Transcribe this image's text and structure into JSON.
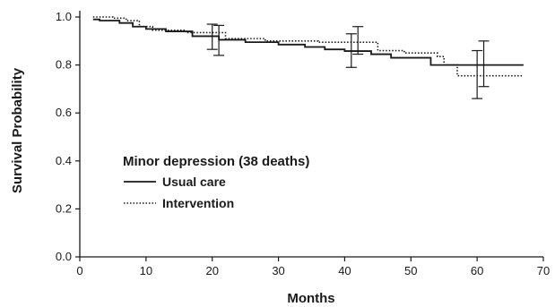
{
  "chart_data": {
    "type": "line",
    "xlabel": "Months",
    "ylabel": "Survival Probability",
    "xlim": [
      0,
      70
    ],
    "ylim": [
      0,
      1.0
    ],
    "x_ticks": [
      0,
      10,
      20,
      30,
      40,
      50,
      60,
      70
    ],
    "x_tick_labels": [
      "0",
      "10",
      "20",
      "30",
      "40",
      "50",
      "60",
      "70"
    ],
    "y_ticks": [
      0,
      0.2,
      0.4,
      0.6,
      0.8,
      1.0
    ],
    "y_tick_labels": [
      "0.0",
      "0.2",
      "0.4",
      "0.6",
      "0.8",
      "1.0"
    ],
    "grid": false,
    "legend": {
      "title": "Minor depression (38 deaths)",
      "placement": "lower-left"
    },
    "series": [
      {
        "name": "Usual care",
        "line_style": "solid",
        "color": "#1a1a1a",
        "x": [
          2,
          3,
          6,
          8,
          10,
          13,
          17,
          21,
          25,
          30,
          34,
          37,
          40,
          44,
          47,
          53,
          56,
          67
        ],
        "y": [
          0.99,
          0.985,
          0.975,
          0.96,
          0.95,
          0.94,
          0.92,
          0.905,
          0.895,
          0.885,
          0.875,
          0.865,
          0.858,
          0.845,
          0.83,
          0.8,
          0.8,
          0.8
        ],
        "error_bars": [
          {
            "x": 20,
            "low": 0.865,
            "high": 0.97
          },
          {
            "x": 41,
            "low": 0.79,
            "high": 0.93
          },
          {
            "x": 60,
            "low": 0.66,
            "high": 0.86
          }
        ]
      },
      {
        "name": "Intervention",
        "line_style": "dotted",
        "color": "#1a1a1a",
        "x": [
          2,
          5,
          7,
          9,
          11,
          16,
          22,
          28,
          36,
          45,
          49,
          54,
          55,
          57,
          67
        ],
        "y": [
          1.0,
          0.995,
          0.985,
          0.96,
          0.945,
          0.935,
          0.91,
          0.9,
          0.895,
          0.86,
          0.85,
          0.835,
          0.8,
          0.755,
          0.755
        ],
        "error_bars": [
          {
            "x": 21,
            "low": 0.84,
            "high": 0.965
          },
          {
            "x": 42,
            "low": 0.845,
            "high": 0.96
          },
          {
            "x": 61,
            "low": 0.71,
            "high": 0.9
          }
        ]
      }
    ]
  }
}
